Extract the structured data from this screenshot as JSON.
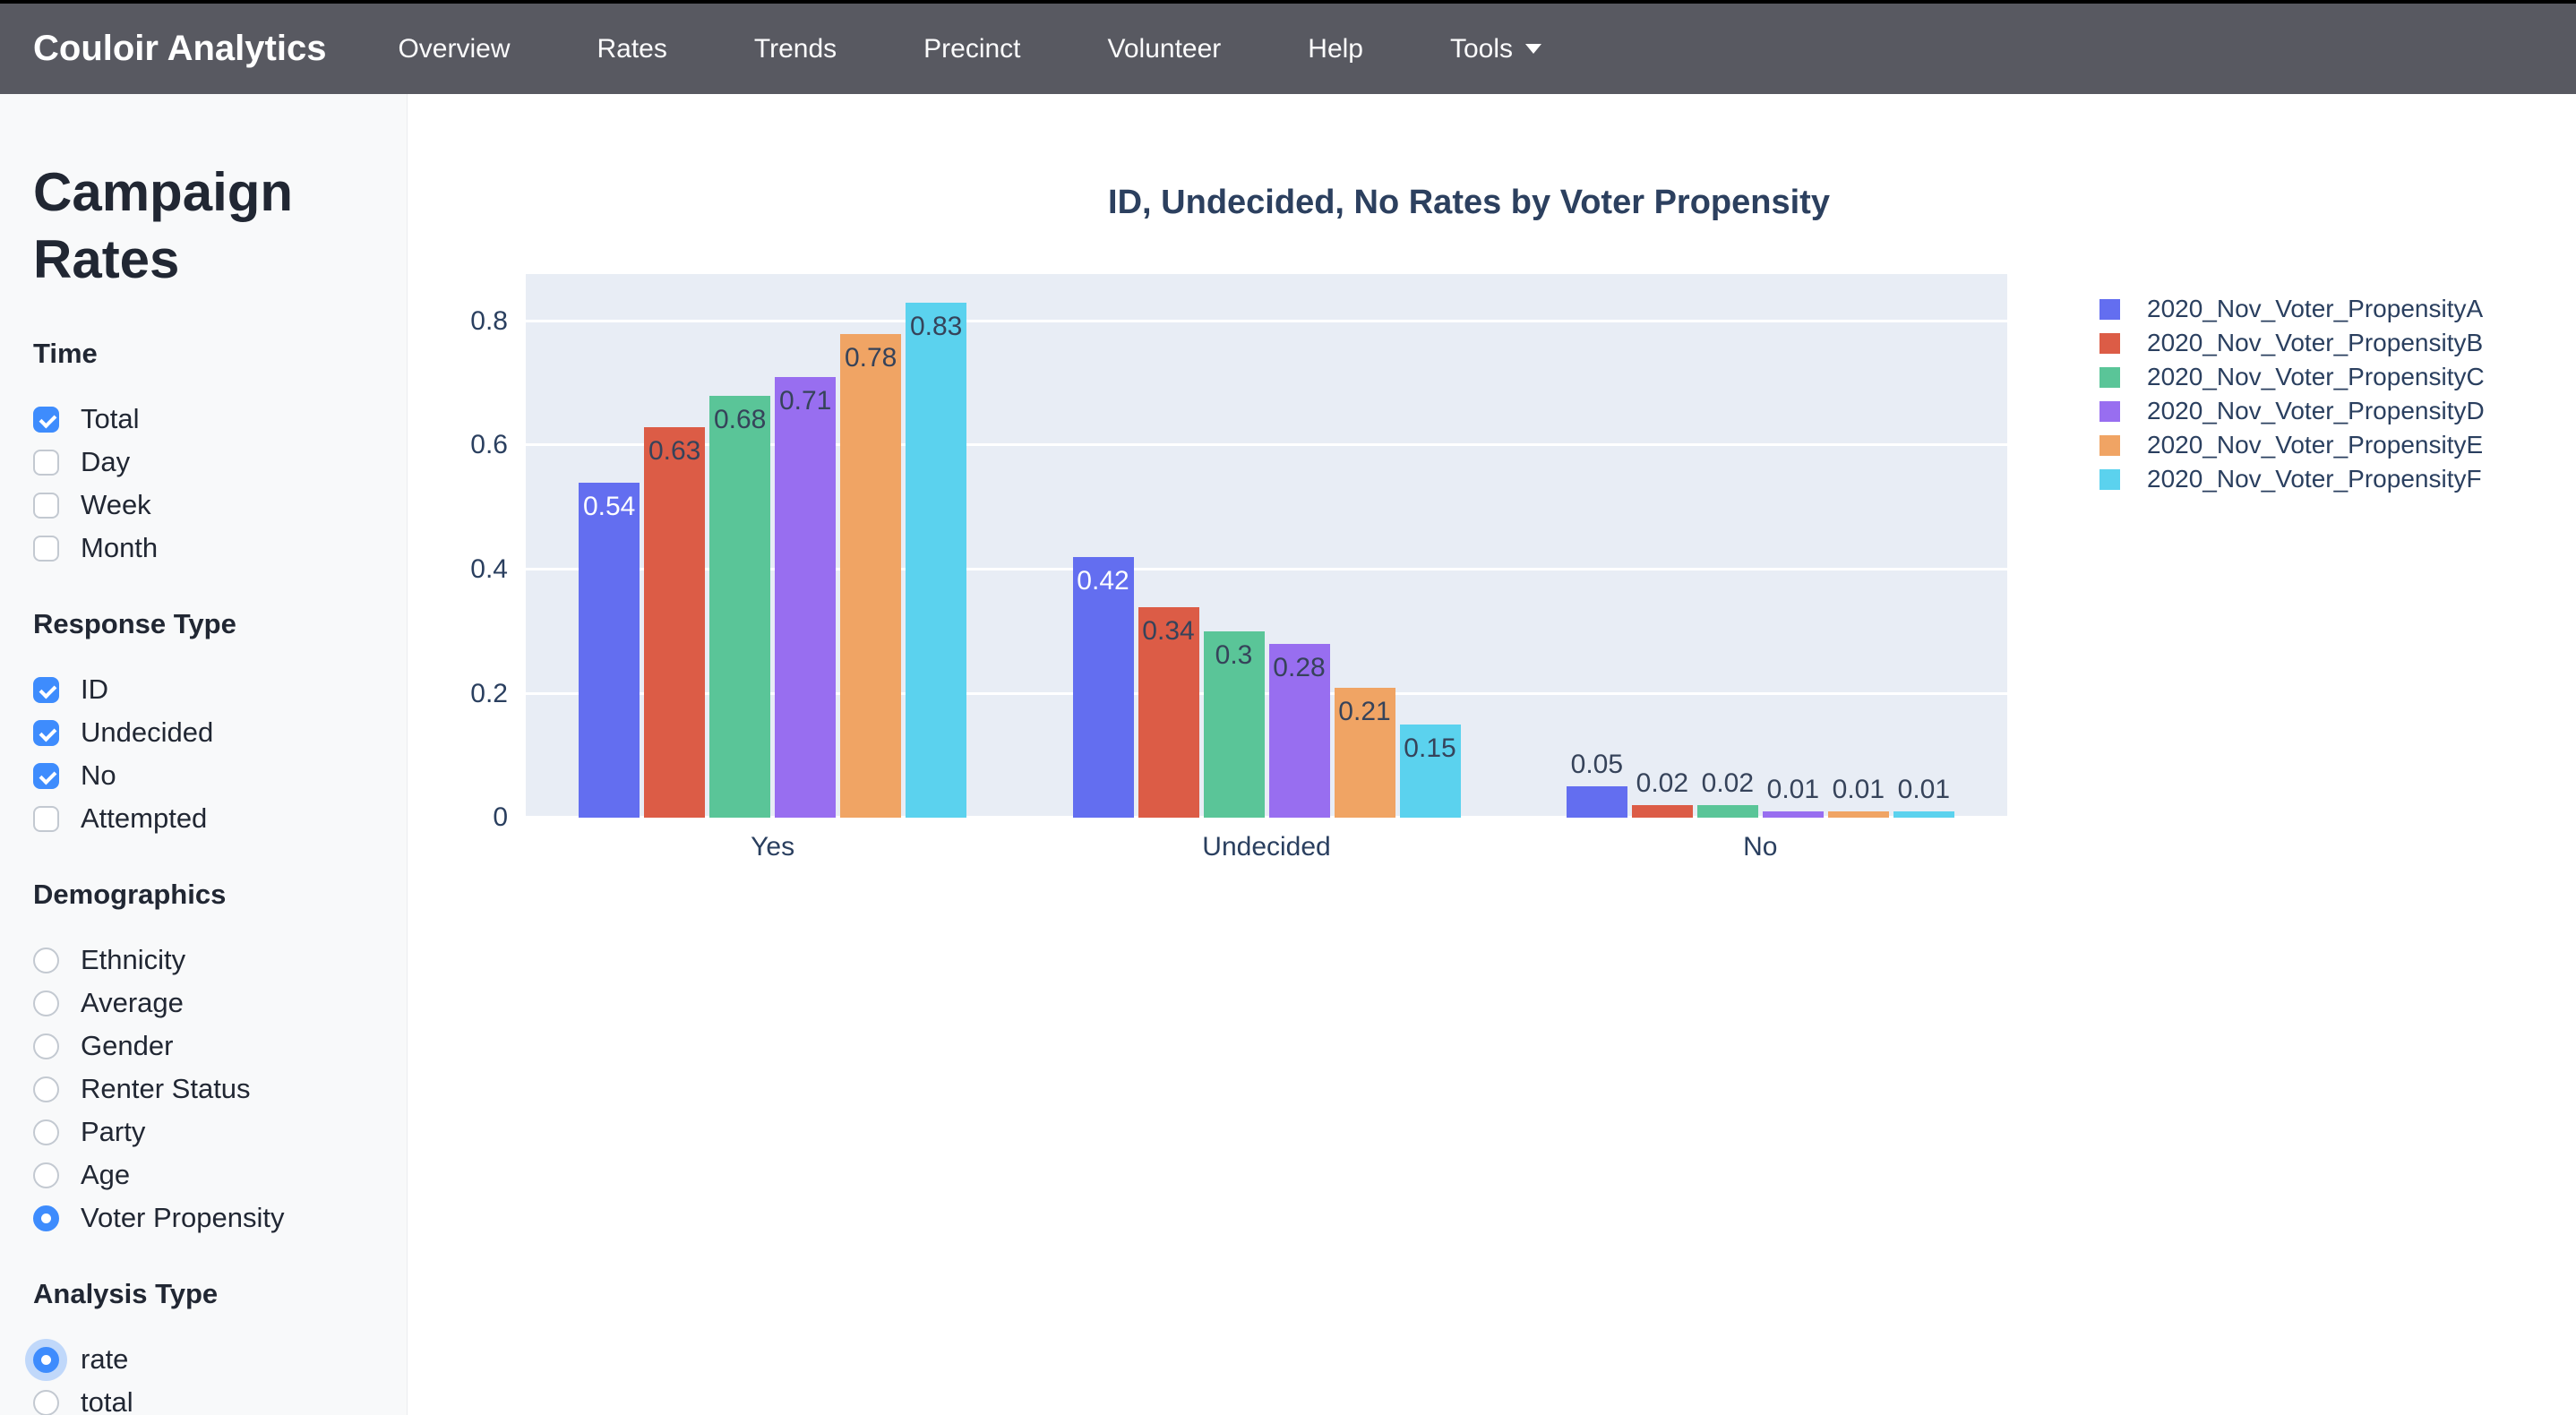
{
  "navbar": {
    "brand": "Couloir Analytics",
    "items": [
      {
        "label": "Overview",
        "dropdown": false
      },
      {
        "label": "Rates",
        "dropdown": false
      },
      {
        "label": "Trends",
        "dropdown": false
      },
      {
        "label": "Precinct",
        "dropdown": false
      },
      {
        "label": "Volunteer",
        "dropdown": false
      },
      {
        "label": "Help",
        "dropdown": false
      },
      {
        "label": "Tools",
        "dropdown": true
      }
    ],
    "bg_color": "#585961"
  },
  "sidebar": {
    "title": "Campaign Rates",
    "sections": [
      {
        "title": "Time",
        "type": "checkbox",
        "items": [
          {
            "label": "Total",
            "checked": true
          },
          {
            "label": "Day",
            "checked": false
          },
          {
            "label": "Week",
            "checked": false
          },
          {
            "label": "Month",
            "checked": false
          }
        ]
      },
      {
        "title": "Response Type",
        "type": "checkbox",
        "items": [
          {
            "label": "ID",
            "checked": true
          },
          {
            "label": "Undecided",
            "checked": true
          },
          {
            "label": "No",
            "checked": true
          },
          {
            "label": "Attempted",
            "checked": false
          }
        ]
      },
      {
        "title": "Demographics",
        "type": "radio",
        "items": [
          {
            "label": "Ethnicity",
            "checked": false
          },
          {
            "label": "Average",
            "checked": false
          },
          {
            "label": "Gender",
            "checked": false
          },
          {
            "label": "Renter Status",
            "checked": false
          },
          {
            "label": "Party",
            "checked": false
          },
          {
            "label": "Age",
            "checked": false
          },
          {
            "label": "Voter Propensity",
            "checked": true
          }
        ]
      },
      {
        "title": "Analysis Type",
        "type": "radio",
        "items": [
          {
            "label": "rate",
            "checked": true,
            "focused": true
          },
          {
            "label": "total",
            "checked": false
          }
        ]
      }
    ],
    "accent_color": "#3e8cfd"
  },
  "chart_data": {
    "type": "bar",
    "title": "ID, Undecided, No Rates by Voter Propensity",
    "categories": [
      "Yes",
      "Undecided",
      "No"
    ],
    "series": [
      {
        "name": "2020_Nov_Voter_PropensityA",
        "color": "#636ef0",
        "values": [
          0.54,
          0.42,
          0.05
        ]
      },
      {
        "name": "2020_Nov_Voter_PropensityB",
        "color": "#dc5c46",
        "values": [
          0.63,
          0.34,
          0.02
        ]
      },
      {
        "name": "2020_Nov_Voter_PropensityC",
        "color": "#5ac598",
        "values": [
          0.68,
          0.3,
          0.02
        ]
      },
      {
        "name": "2020_Nov_Voter_PropensityD",
        "color": "#986ef0",
        "values": [
          0.71,
          0.28,
          0.01
        ]
      },
      {
        "name": "2020_Nov_Voter_PropensityE",
        "color": "#f0a464",
        "values": [
          0.78,
          0.21,
          0.01
        ]
      },
      {
        "name": "2020_Nov_Voter_PropensityF",
        "color": "#5bd2ee",
        "values": [
          0.83,
          0.15,
          0.01
        ]
      }
    ],
    "xlabel": "",
    "ylabel": "",
    "ylim": [
      0,
      0.8765
    ],
    "yticks": [
      0,
      0.2,
      0.4,
      0.6,
      0.8
    ],
    "grid": true,
    "legend_position": "right",
    "plot_bg": "#e8edf5",
    "text_color": "#2a3f5f",
    "bar_label_inside_dark": "#36435a",
    "bar_label_inside_light": "#ffffff"
  }
}
